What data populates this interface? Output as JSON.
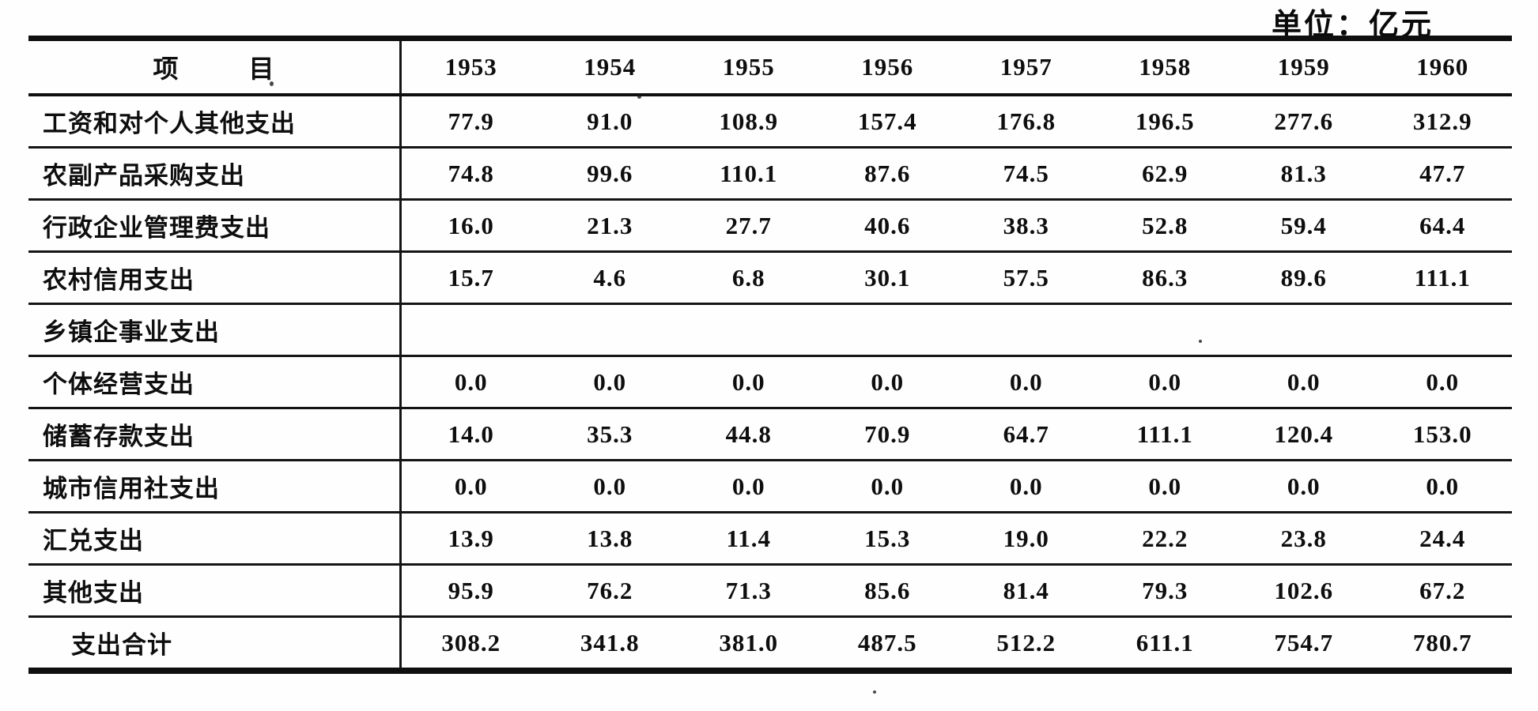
{
  "unit_label": "单位：亿元",
  "table": {
    "header": {
      "item_label": "项 目",
      "years": [
        "1953",
        "1954",
        "1955",
        "1956",
        "1957",
        "1958",
        "1959",
        "1960"
      ]
    },
    "rows": [
      {
        "label": "工资和对个人其他支出",
        "indent": false,
        "values": [
          "77.9",
          "91.0",
          "108.9",
          "157.4",
          "176.8",
          "196.5",
          "277.6",
          "312.9"
        ]
      },
      {
        "label": "农副产品采购支出",
        "indent": false,
        "values": [
          "74.8",
          "99.6",
          "110.1",
          "87.6",
          "74.5",
          "62.9",
          "81.3",
          "47.7"
        ]
      },
      {
        "label": "行政企业管理费支出",
        "indent": false,
        "values": [
          "16.0",
          "21.3",
          "27.7",
          "40.6",
          "38.3",
          "52.8",
          "59.4",
          "64.4"
        ]
      },
      {
        "label": "农村信用支出",
        "indent": false,
        "values": [
          "15.7",
          "4.6",
          "6.8",
          "30.1",
          "57.5",
          "86.3",
          "89.6",
          "111.1"
        ]
      },
      {
        "label": "乡镇企事业支出",
        "indent": false,
        "values": [
          "",
          "",
          "",
          "",
          "",
          "",
          "",
          ""
        ]
      },
      {
        "label": "个体经营支出",
        "indent": false,
        "values": [
          "0.0",
          "0.0",
          "0.0",
          "0.0",
          "0.0",
          "0.0",
          "0.0",
          "0.0"
        ]
      },
      {
        "label": "储蓄存款支出",
        "indent": false,
        "values": [
          "14.0",
          "35.3",
          "44.8",
          "70.9",
          "64.7",
          "111.1",
          "120.4",
          "153.0"
        ]
      },
      {
        "label": "城市信用社支出",
        "indent": false,
        "values": [
          "0.0",
          "0.0",
          "0.0",
          "0.0",
          "0.0",
          "0.0",
          "0.0",
          "0.0"
        ]
      },
      {
        "label": "汇兑支出",
        "indent": false,
        "values": [
          "13.9",
          "13.8",
          "11.4",
          "15.3",
          "19.0",
          "22.2",
          "23.8",
          "24.4"
        ]
      },
      {
        "label": "其他支出",
        "indent": false,
        "values": [
          "95.9",
          "76.2",
          "71.3",
          "85.6",
          "81.4",
          "79.3",
          "102.6",
          "67.2"
        ]
      },
      {
        "label": "支出合计",
        "indent": true,
        "values": [
          "308.2",
          "341.8",
          "381.0",
          "487.5",
          "512.2",
          "611.1",
          "754.7",
          "780.7"
        ]
      }
    ]
  },
  "colors": {
    "ink": "#0e0e0e",
    "paper": "#fefefe"
  }
}
